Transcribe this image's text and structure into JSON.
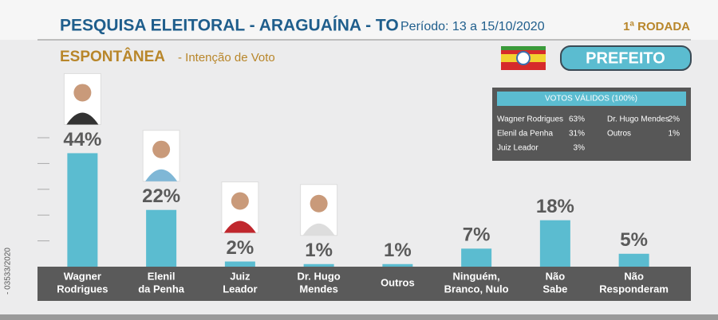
{
  "chart_data": {
    "type": "bar",
    "title": "PESQUISA ELEITORAL - ARAGUAÍNA - TO",
    "period": "Período: 13 a 15/10/2020",
    "round": "1ª RODADA",
    "subtitle": "ESPONTÂNEA",
    "subtitle_detail": "- Intenção de Voto",
    "office": "PREFEITO",
    "registration": "- 03533/2020",
    "categories": [
      [
        "Wagner",
        "Rodrigues"
      ],
      [
        "Elenil",
        "da Penha"
      ],
      [
        "Juiz",
        "Leador"
      ],
      [
        "Dr. Hugo",
        "Mendes"
      ],
      [
        "Outros"
      ],
      [
        "Ninguém,",
        "Branco, Nulo"
      ],
      [
        "Não",
        "Sabe"
      ],
      [
        "Não",
        "Responderam"
      ]
    ],
    "values": [
      44,
      22,
      2,
      1,
      1,
      7,
      18,
      5
    ],
    "value_labels": [
      "44%",
      "22%",
      "2%",
      "1%",
      "1%",
      "7%",
      "18%",
      "5%"
    ],
    "color": "#5bbcd0",
    "ylim": [
      0,
      50
    ],
    "yticks": [
      10,
      20,
      30,
      40,
      50
    ],
    "valid_votes": {
      "title": "VOTOS VÁLIDOS (100%)",
      "items": [
        {
          "name": "Wagner Rodrigues",
          "value": "63%"
        },
        {
          "name": "Elenil da Penha",
          "value": "31%"
        },
        {
          "name": "Juiz Leador",
          "value": "3%"
        },
        {
          "name": "Dr. Hugo Mendes",
          "value": "2%"
        },
        {
          "name": "Outros",
          "value": "1%"
        }
      ]
    }
  }
}
